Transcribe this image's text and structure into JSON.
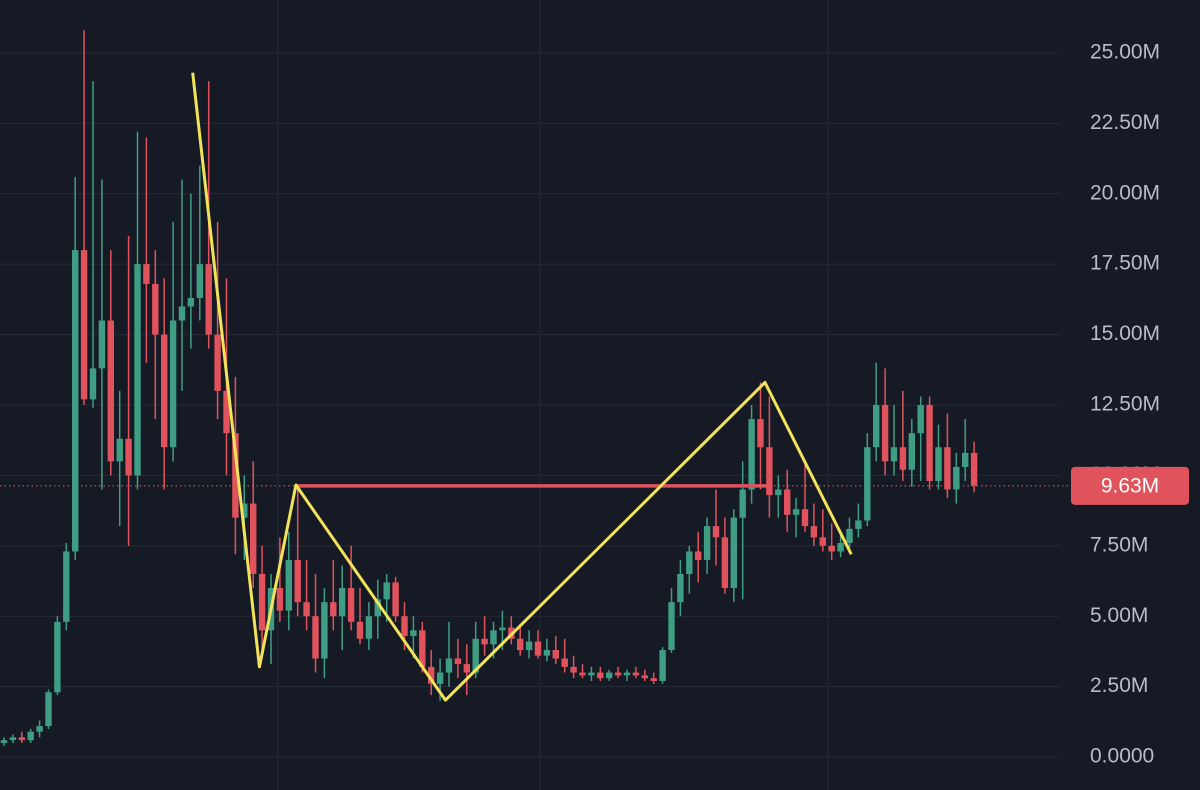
{
  "chart_data": {
    "type": "candlestick",
    "up_color": "#3e9d83",
    "down_color": "#e0535c",
    "ylim": [
      -1.17,
      26.88
    ],
    "yticks": [
      {
        "value": 0,
        "label": "0.0000"
      },
      {
        "value": 2.5,
        "label": "2.50M"
      },
      {
        "value": 5,
        "label": "5.00M"
      },
      {
        "value": 7.5,
        "label": "7.50M"
      },
      {
        "value": 10,
        "label": "10.00M"
      },
      {
        "value": 12.5,
        "label": "12.50M"
      },
      {
        "value": 15,
        "label": "15.00M"
      },
      {
        "value": 17.5,
        "label": "17.50M"
      },
      {
        "value": 20,
        "label": "20.00M"
      },
      {
        "value": 22.5,
        "label": "22.50M"
      },
      {
        "value": 25,
        "label": "25.00M"
      }
    ],
    "grid": true,
    "last_price": {
      "value": 9.63,
      "label": "9.63M",
      "color": "#e0535c"
    },
    "ohlc": [
      [
        0.5,
        0.7,
        0.4,
        0.6
      ],
      [
        0.6,
        0.8,
        0.5,
        0.7
      ],
      [
        0.7,
        0.9,
        0.5,
        0.6
      ],
      [
        0.6,
        1.0,
        0.5,
        0.9
      ],
      [
        0.9,
        1.3,
        0.7,
        1.1
      ],
      [
        1.1,
        2.4,
        1.0,
        2.3
      ],
      [
        2.3,
        5.0,
        2.2,
        4.8
      ],
      [
        4.8,
        7.6,
        4.5,
        7.3
      ],
      [
        7.3,
        20.6,
        7.0,
        18.0
      ],
      [
        18.0,
        25.8,
        12.5,
        12.7
      ],
      [
        12.7,
        24.0,
        12.4,
        13.8
      ],
      [
        13.8,
        20.5,
        9.5,
        15.5
      ],
      [
        15.5,
        18.0,
        10.0,
        10.5
      ],
      [
        10.5,
        13.0,
        8.2,
        11.3
      ],
      [
        11.3,
        18.5,
        7.5,
        10.0
      ],
      [
        10.0,
        22.2,
        9.5,
        17.5
      ],
      [
        17.5,
        22.0,
        14.0,
        16.8
      ],
      [
        16.8,
        18.0,
        12.0,
        15.0
      ],
      [
        15.0,
        17.0,
        9.5,
        11.0
      ],
      [
        11.0,
        19.0,
        10.5,
        15.5
      ],
      [
        15.5,
        20.5,
        13.0,
        16.0
      ],
      [
        16.0,
        20.0,
        14.5,
        16.3
      ],
      [
        16.3,
        21.0,
        15.5,
        17.5
      ],
      [
        17.5,
        24.0,
        14.5,
        15.0
      ],
      [
        15.0,
        19.0,
        12.0,
        13.0
      ],
      [
        13.0,
        17.0,
        10.0,
        11.5
      ],
      [
        11.5,
        13.5,
        7.2,
        8.5
      ],
      [
        8.5,
        10.0,
        7.0,
        9.0
      ],
      [
        9.0,
        10.5,
        6.0,
        6.5
      ],
      [
        6.5,
        7.5,
        3.8,
        4.5
      ],
      [
        4.5,
        6.5,
        3.3,
        6.0
      ],
      [
        6.0,
        7.8,
        4.8,
        5.2
      ],
      [
        5.2,
        8.0,
        4.5,
        7.0
      ],
      [
        7.0,
        9.6,
        5.0,
        5.5
      ],
      [
        5.5,
        7.0,
        4.5,
        5.0
      ],
      [
        5.0,
        6.5,
        3.0,
        3.5
      ],
      [
        3.5,
        6.0,
        2.8,
        5.5
      ],
      [
        5.5,
        7.0,
        4.5,
        5.0
      ],
      [
        5.0,
        6.8,
        3.8,
        6.0
      ],
      [
        6.0,
        7.5,
        4.5,
        4.8
      ],
      [
        4.8,
        6.0,
        4.0,
        4.2
      ],
      [
        4.2,
        5.5,
        3.8,
        5.0
      ],
      [
        5.0,
        6.3,
        4.2,
        5.6
      ],
      [
        5.6,
        6.5,
        4.8,
        6.2
      ],
      [
        6.2,
        6.4,
        4.8,
        5.0
      ],
      [
        5.0,
        5.5,
        3.8,
        4.3
      ],
      [
        4.3,
        5.0,
        3.5,
        4.5
      ],
      [
        4.5,
        4.8,
        3.0,
        3.2
      ],
      [
        3.2,
        3.8,
        2.2,
        2.6
      ],
      [
        2.6,
        3.5,
        2.0,
        3.0
      ],
      [
        3.0,
        4.8,
        2.5,
        3.5
      ],
      [
        3.5,
        4.2,
        2.8,
        3.3
      ],
      [
        3.3,
        4.0,
        2.2,
        3.0
      ],
      [
        3.0,
        4.8,
        2.8,
        4.2
      ],
      [
        4.2,
        5.0,
        3.6,
        4.0
      ],
      [
        4.0,
        4.8,
        3.5,
        4.5
      ],
      [
        4.5,
        5.2,
        3.8,
        4.6
      ],
      [
        4.6,
        5.0,
        4.0,
        4.2
      ],
      [
        4.2,
        4.7,
        3.6,
        3.8
      ],
      [
        3.8,
        4.5,
        3.5,
        4.1
      ],
      [
        4.1,
        4.5,
        3.5,
        3.6
      ],
      [
        3.6,
        4.2,
        3.4,
        3.8
      ],
      [
        3.8,
        4.3,
        3.3,
        3.5
      ],
      [
        3.5,
        4.2,
        3.0,
        3.2
      ],
      [
        3.2,
        3.6,
        2.8,
        3.0
      ],
      [
        3.0,
        3.3,
        2.8,
        2.9
      ],
      [
        2.9,
        3.2,
        2.7,
        3.0
      ],
      [
        3.0,
        3.2,
        2.7,
        2.8
      ],
      [
        2.8,
        3.1,
        2.7,
        3.0
      ],
      [
        3.0,
        3.2,
        2.8,
        2.9
      ],
      [
        2.9,
        3.1,
        2.7,
        3.0
      ],
      [
        3.0,
        3.2,
        2.8,
        2.9
      ],
      [
        2.9,
        3.1,
        2.7,
        2.8
      ],
      [
        2.8,
        3.0,
        2.6,
        2.7
      ],
      [
        2.7,
        3.9,
        2.6,
        3.8
      ],
      [
        3.8,
        6.0,
        3.7,
        5.5
      ],
      [
        5.5,
        7.0,
        5.0,
        6.5
      ],
      [
        6.5,
        7.5,
        5.8,
        7.3
      ],
      [
        7.3,
        8.0,
        6.2,
        7.0
      ],
      [
        7.0,
        8.5,
        6.5,
        8.2
      ],
      [
        8.2,
        9.5,
        6.8,
        7.8
      ],
      [
        7.8,
        8.5,
        5.8,
        6.0
      ],
      [
        6.0,
        8.8,
        5.5,
        8.5
      ],
      [
        8.5,
        10.5,
        5.6,
        9.5
      ],
      [
        9.5,
        12.5,
        9.0,
        12.0
      ],
      [
        12.0,
        13.3,
        9.5,
        11.0
      ],
      [
        11.0,
        12.8,
        8.5,
        9.3
      ],
      [
        9.3,
        10.0,
        8.5,
        9.5
      ],
      [
        9.5,
        10.2,
        8.0,
        8.6
      ],
      [
        8.6,
        9.2,
        7.8,
        8.8
      ],
      [
        8.8,
        10.5,
        8.0,
        8.2
      ],
      [
        8.2,
        9.0,
        7.5,
        7.8
      ],
      [
        7.8,
        8.8,
        7.3,
        7.5
      ],
      [
        7.5,
        8.3,
        7.0,
        7.3
      ],
      [
        7.3,
        8.0,
        7.1,
        7.6
      ],
      [
        7.6,
        8.5,
        7.4,
        8.1
      ],
      [
        8.1,
        9.0,
        7.8,
        8.4
      ],
      [
        8.4,
        11.5,
        8.2,
        11.0
      ],
      [
        11.0,
        14.0,
        10.5,
        12.5
      ],
      [
        12.5,
        13.8,
        10.0,
        10.5
      ],
      [
        10.5,
        12.5,
        10.0,
        11.0
      ],
      [
        11.0,
        13.0,
        9.8,
        10.2
      ],
      [
        10.2,
        12.0,
        9.6,
        11.5
      ],
      [
        11.5,
        12.8,
        9.8,
        12.5
      ],
      [
        12.5,
        12.8,
        9.5,
        9.8
      ],
      [
        9.8,
        11.8,
        9.5,
        11.0
      ],
      [
        11.0,
        12.2,
        9.2,
        9.5
      ],
      [
        9.5,
        10.8,
        9.0,
        10.3
      ],
      [
        10.3,
        12.0,
        9.8,
        10.8
      ],
      [
        10.8,
        11.2,
        9.4,
        9.63
      ]
    ],
    "zigzag": {
      "color": "#f2e35a",
      "x": [
        21.2,
        28.7,
        32.8,
        49.6,
        85.5,
        95.2
      ],
      "values": [
        24.3,
        3.2,
        9.66,
        2.02,
        13.3,
        7.2
      ]
    },
    "level_line": {
      "color": "#e0535c",
      "value": 9.63,
      "x": [
        32.8,
        86.2
      ]
    }
  }
}
